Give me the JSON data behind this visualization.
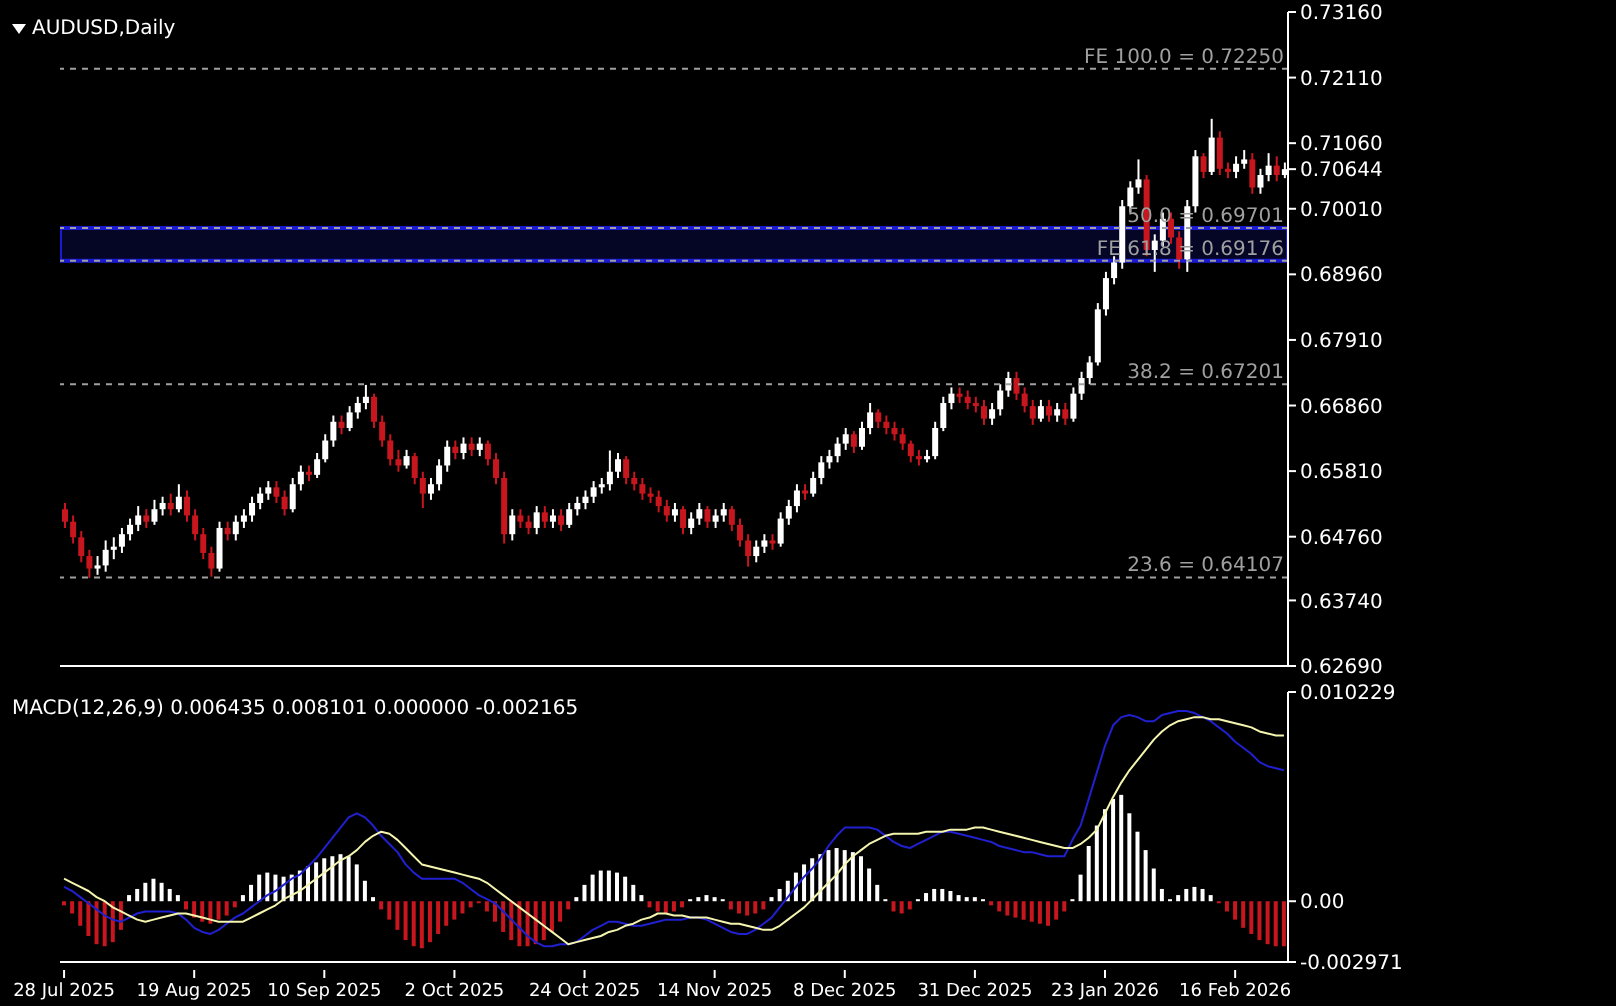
{
  "chart_data": [
    {
      "type": "candlestick",
      "title": "AUDUSD,Daily",
      "tick_labels": "y",
      "categories": [
        null,
        null,
        null,
        null,
        null,
        null,
        null,
        null,
        null,
        null,
        null,
        null,
        null,
        null,
        null,
        null,
        null,
        null,
        null,
        null,
        null,
        null,
        null,
        null,
        null,
        null,
        null,
        null,
        null,
        null,
        null,
        null,
        null,
        null,
        null,
        null,
        null,
        null,
        null,
        null,
        null,
        null,
        null,
        null,
        null,
        null,
        null,
        null,
        null,
        null,
        null,
        null,
        null,
        null,
        null,
        null,
        null,
        null,
        null,
        null,
        null,
        null,
        null,
        null,
        null,
        null,
        null,
        null,
        null,
        null,
        null,
        null,
        null,
        null,
        null,
        null,
        null,
        null,
        null,
        null,
        null,
        null,
        null,
        null,
        null,
        null,
        null,
        null,
        null,
        null,
        null,
        null,
        null,
        null,
        null,
        null,
        null,
        null,
        null,
        null,
        null,
        null,
        null,
        null,
        null,
        null,
        null,
        null,
        null,
        null,
        null,
        null,
        null,
        null,
        null,
        null,
        null,
        null,
        null,
        null,
        null,
        null,
        null,
        null,
        null,
        null,
        null,
        null,
        null,
        null,
        null,
        null,
        null,
        null,
        null,
        null,
        null,
        null,
        null,
        null,
        null,
        null,
        null,
        null,
        null,
        null,
        null,
        null,
        null,
        null,
        null
      ],
      "ohlc": [
        [
          0.652,
          0.653,
          0.649,
          0.65
        ],
        [
          0.65,
          0.651,
          0.6465,
          0.6475
        ],
        [
          0.6475,
          0.6485,
          0.6435,
          0.6445
        ],
        [
          0.6445,
          0.6455,
          0.641,
          0.6425
        ],
        [
          0.6425,
          0.6445,
          0.6415,
          0.643
        ],
        [
          0.643,
          0.647,
          0.642,
          0.6455
        ],
        [
          0.6455,
          0.6475,
          0.644,
          0.646
        ],
        [
          0.646,
          0.649,
          0.645,
          0.648
        ],
        [
          0.648,
          0.6505,
          0.647,
          0.6495
        ],
        [
          0.6495,
          0.6525,
          0.6485,
          0.651
        ],
        [
          0.651,
          0.652,
          0.649,
          0.65
        ],
        [
          0.65,
          0.6535,
          0.6495,
          0.652
        ],
        [
          0.652,
          0.654,
          0.651,
          0.653
        ],
        [
          0.653,
          0.6545,
          0.651,
          0.652
        ],
        [
          0.652,
          0.656,
          0.6515,
          0.654
        ],
        [
          0.654,
          0.655,
          0.65,
          0.651
        ],
        [
          0.651,
          0.652,
          0.647,
          0.648
        ],
        [
          0.648,
          0.649,
          0.644,
          0.645
        ],
        [
          0.645,
          0.646,
          0.6412,
          0.6425
        ],
        [
          0.6425,
          0.65,
          0.642,
          0.649
        ],
        [
          0.649,
          0.65,
          0.647,
          0.648
        ],
        [
          0.648,
          0.651,
          0.647,
          0.65
        ],
        [
          0.65,
          0.652,
          0.649,
          0.651
        ],
        [
          0.651,
          0.654,
          0.65,
          0.653
        ],
        [
          0.653,
          0.6555,
          0.652,
          0.6545
        ],
        [
          0.6545,
          0.6565,
          0.6535,
          0.6555
        ],
        [
          0.6555,
          0.6565,
          0.653,
          0.654
        ],
        [
          0.654,
          0.655,
          0.651,
          0.652
        ],
        [
          0.652,
          0.657,
          0.6515,
          0.656
        ],
        [
          0.656,
          0.659,
          0.655,
          0.658
        ],
        [
          0.658,
          0.659,
          0.6565,
          0.6575
        ],
        [
          0.6575,
          0.661,
          0.657,
          0.66
        ],
        [
          0.66,
          0.664,
          0.6595,
          0.663
        ],
        [
          0.663,
          0.667,
          0.662,
          0.666
        ],
        [
          0.666,
          0.667,
          0.664,
          0.665
        ],
        [
          0.665,
          0.6685,
          0.6645,
          0.6675
        ],
        [
          0.6675,
          0.67,
          0.6665,
          0.669
        ],
        [
          0.669,
          0.6719,
          0.668,
          0.67
        ],
        [
          0.67,
          0.6705,
          0.665,
          0.666
        ],
        [
          0.666,
          0.667,
          0.662,
          0.663
        ],
        [
          0.663,
          0.664,
          0.659,
          0.66
        ],
        [
          0.66,
          0.6615,
          0.658,
          0.659
        ],
        [
          0.659,
          0.6615,
          0.6585,
          0.6605
        ],
        [
          0.6605,
          0.661,
          0.656,
          0.657
        ],
        [
          0.657,
          0.658,
          0.6522,
          0.6545
        ],
        [
          0.6545,
          0.657,
          0.6535,
          0.656
        ],
        [
          0.656,
          0.66,
          0.655,
          0.659
        ],
        [
          0.659,
          0.663,
          0.658,
          0.662
        ],
        [
          0.662,
          0.663,
          0.66,
          0.661
        ],
        [
          0.661,
          0.6635,
          0.66,
          0.6625
        ],
        [
          0.6625,
          0.6635,
          0.6605,
          0.6615
        ],
        [
          0.6615,
          0.6635,
          0.6605,
          0.6625
        ],
        [
          0.6625,
          0.663,
          0.659,
          0.66
        ],
        [
          0.66,
          0.661,
          0.656,
          0.657
        ],
        [
          0.657,
          0.658,
          0.6465,
          0.648
        ],
        [
          0.648,
          0.652,
          0.647,
          0.651
        ],
        [
          0.651,
          0.652,
          0.649,
          0.65
        ],
        [
          0.65,
          0.651,
          0.648,
          0.649
        ],
        [
          0.649,
          0.6525,
          0.648,
          0.6515
        ],
        [
          0.6515,
          0.6525,
          0.649,
          0.65
        ],
        [
          0.65,
          0.652,
          0.649,
          0.651
        ],
        [
          0.651,
          0.652,
          0.6485,
          0.6495
        ],
        [
          0.6495,
          0.653,
          0.649,
          0.652
        ],
        [
          0.652,
          0.654,
          0.651,
          0.653
        ],
        [
          0.653,
          0.655,
          0.652,
          0.654
        ],
        [
          0.654,
          0.6565,
          0.653,
          0.6555
        ],
        [
          0.6555,
          0.657,
          0.6545,
          0.656
        ],
        [
          0.656,
          0.6614,
          0.655,
          0.658
        ],
        [
          0.658,
          0.661,
          0.657,
          0.66
        ],
        [
          0.66,
          0.6605,
          0.656,
          0.657
        ],
        [
          0.657,
          0.658,
          0.655,
          0.656
        ],
        [
          0.656,
          0.657,
          0.6535,
          0.6545
        ],
        [
          0.6545,
          0.6555,
          0.653,
          0.654
        ],
        [
          0.654,
          0.655,
          0.6515,
          0.6525
        ],
        [
          0.6525,
          0.6535,
          0.65,
          0.651
        ],
        [
          0.651,
          0.653,
          0.65,
          0.652
        ],
        [
          0.652,
          0.6525,
          0.648,
          0.649
        ],
        [
          0.649,
          0.6515,
          0.648,
          0.6505
        ],
        [
          0.6505,
          0.653,
          0.6495,
          0.652
        ],
        [
          0.652,
          0.6525,
          0.649,
          0.65
        ],
        [
          0.65,
          0.652,
          0.649,
          0.651
        ],
        [
          0.651,
          0.653,
          0.65,
          0.652
        ],
        [
          0.652,
          0.6525,
          0.6485,
          0.6495
        ],
        [
          0.6495,
          0.6505,
          0.646,
          0.647
        ],
        [
          0.647,
          0.648,
          0.6428,
          0.6445
        ],
        [
          0.6445,
          0.647,
          0.6435,
          0.646
        ],
        [
          0.646,
          0.648,
          0.645,
          0.647
        ],
        [
          0.647,
          0.648,
          0.6455,
          0.6465
        ],
        [
          0.6465,
          0.6515,
          0.646,
          0.6505
        ],
        [
          0.6505,
          0.6535,
          0.6495,
          0.6525
        ],
        [
          0.6525,
          0.656,
          0.6515,
          0.655
        ],
        [
          0.655,
          0.656,
          0.6535,
          0.6545
        ],
        [
          0.6545,
          0.658,
          0.654,
          0.657
        ],
        [
          0.657,
          0.6605,
          0.656,
          0.6595
        ],
        [
          0.6595,
          0.6615,
          0.6585,
          0.6605
        ],
        [
          0.6605,
          0.6635,
          0.6595,
          0.6625
        ],
        [
          0.6625,
          0.665,
          0.6615,
          0.664
        ],
        [
          0.664,
          0.6645,
          0.661,
          0.662
        ],
        [
          0.662,
          0.666,
          0.6615,
          0.665
        ],
        [
          0.665,
          0.669,
          0.664,
          0.6675
        ],
        [
          0.6675,
          0.668,
          0.665,
          0.666
        ],
        [
          0.666,
          0.667,
          0.664,
          0.665
        ],
        [
          0.665,
          0.666,
          0.663,
          0.664
        ],
        [
          0.664,
          0.665,
          0.6615,
          0.6625
        ],
        [
          0.6625,
          0.663,
          0.6595,
          0.6605
        ],
        [
          0.6605,
          0.6615,
          0.659,
          0.66
        ],
        [
          0.66,
          0.6615,
          0.6595,
          0.6605
        ],
        [
          0.6605,
          0.666,
          0.66,
          0.665
        ],
        [
          0.665,
          0.67,
          0.6645,
          0.669
        ],
        [
          0.669,
          0.6715,
          0.668,
          0.6705
        ],
        [
          0.6705,
          0.6715,
          0.669,
          0.67
        ],
        [
          0.67,
          0.671,
          0.668,
          0.669
        ],
        [
          0.669,
          0.67,
          0.6675,
          0.6685
        ],
        [
          0.6685,
          0.6695,
          0.6655,
          0.6665
        ],
        [
          0.6665,
          0.669,
          0.6655,
          0.668
        ],
        [
          0.668,
          0.672,
          0.667,
          0.671
        ],
        [
          0.671,
          0.674,
          0.67,
          0.673
        ],
        [
          0.673,
          0.674,
          0.6695,
          0.6705
        ],
        [
          0.6705,
          0.6715,
          0.6675,
          0.6685
        ],
        [
          0.6685,
          0.6695,
          0.6655,
          0.6665
        ],
        [
          0.6665,
          0.6695,
          0.666,
          0.6685
        ],
        [
          0.6685,
          0.6695,
          0.666,
          0.667
        ],
        [
          0.667,
          0.669,
          0.666,
          0.668
        ],
        [
          0.668,
          0.669,
          0.6655,
          0.6665
        ],
        [
          0.6665,
          0.6715,
          0.666,
          0.6705
        ],
        [
          0.6705,
          0.674,
          0.6695,
          0.673
        ],
        [
          0.673,
          0.6765,
          0.672,
          0.6755
        ],
        [
          0.6755,
          0.685,
          0.675,
          0.684
        ],
        [
          0.684,
          0.69,
          0.683,
          0.689
        ],
        [
          0.689,
          0.6925,
          0.688,
          0.6915
        ],
        [
          0.6915,
          0.7015,
          0.6905,
          0.7005
        ],
        [
          0.7005,
          0.7045,
          0.6995,
          0.7035
        ],
        [
          0.7035,
          0.708,
          0.7025,
          0.7048
        ],
        [
          0.7048,
          0.7055,
          0.6925,
          0.6935
        ],
        [
          0.6935,
          0.696,
          0.69,
          0.695
        ],
        [
          0.695,
          0.6995,
          0.694,
          0.6985
        ],
        [
          0.6985,
          0.6995,
          0.6945,
          0.6955
        ],
        [
          0.6955,
          0.6965,
          0.6905,
          0.692
        ],
        [
          0.692,
          0.7015,
          0.69,
          0.7005
        ],
        [
          0.7005,
          0.7095,
          0.6995,
          0.7085
        ],
        [
          0.7085,
          0.709,
          0.705,
          0.706
        ],
        [
          0.706,
          0.7145,
          0.7055,
          0.7115
        ],
        [
          0.7115,
          0.7125,
          0.7055,
          0.7065
        ],
        [
          0.7065,
          0.7075,
          0.705,
          0.706
        ],
        [
          0.706,
          0.7085,
          0.705,
          0.7073
        ],
        [
          0.7073,
          0.7095,
          0.7065,
          0.708
        ],
        [
          0.708,
          0.709,
          0.7025,
          0.7035
        ],
        [
          0.7035,
          0.7065,
          0.7025,
          0.7055
        ],
        [
          0.7055,
          0.709,
          0.7045,
          0.707
        ],
        [
          0.707,
          0.7085,
          0.7045,
          0.7055
        ],
        [
          0.7055,
          0.7075,
          0.705,
          0.70644
        ]
      ],
      "colors": [
        "#c8161e",
        "#c8161e",
        "#c8161e",
        "#c8161e",
        "#ffffff",
        "#ffffff",
        "#ffffff",
        "#ffffff",
        "#ffffff",
        "#ffffff",
        "#c8161e",
        "#ffffff",
        "#ffffff",
        "#c8161e",
        "#ffffff",
        "#c8161e",
        "#c8161e",
        "#c8161e",
        "#c8161e",
        "#ffffff",
        "#c8161e",
        "#ffffff",
        "#ffffff",
        "#ffffff",
        "#ffffff",
        "#ffffff",
        "#c8161e",
        "#c8161e",
        "#ffffff",
        "#ffffff",
        "#c8161e",
        "#ffffff",
        "#ffffff",
        "#ffffff",
        "#c8161e",
        "#ffffff",
        "#ffffff",
        "#ffffff",
        "#c8161e",
        "#c8161e",
        "#c8161e",
        "#c8161e",
        "#ffffff",
        "#c8161e",
        "#c8161e",
        "#ffffff",
        "#ffffff",
        "#ffffff",
        "#c8161e",
        "#ffffff",
        "#c8161e",
        "#ffffff",
        "#c8161e",
        "#c8161e",
        "#c8161e",
        "#ffffff",
        "#c8161e",
        "#c8161e",
        "#ffffff",
        "#c8161e",
        "#ffffff",
        "#c8161e",
        "#ffffff",
        "#ffffff",
        "#ffffff",
        "#ffffff",
        "#ffffff",
        "#ffffff",
        "#ffffff",
        "#c8161e",
        "#c8161e",
        "#c8161e",
        "#c8161e",
        "#c8161e",
        "#c8161e",
        "#ffffff",
        "#c8161e",
        "#ffffff",
        "#ffffff",
        "#c8161e",
        "#ffffff",
        "#ffffff",
        "#c8161e",
        "#c8161e",
        "#c8161e",
        "#ffffff",
        "#ffffff",
        "#c8161e",
        "#ffffff",
        "#ffffff",
        "#ffffff",
        "#c8161e",
        "#ffffff",
        "#ffffff",
        "#ffffff",
        "#ffffff",
        "#ffffff",
        "#c8161e",
        "#ffffff",
        "#ffffff",
        "#c8161e",
        "#c8161e",
        "#c8161e",
        "#c8161e",
        "#c8161e",
        "#c8161e",
        "#ffffff",
        "#ffffff",
        "#ffffff",
        "#ffffff",
        "#c8161e",
        "#c8161e",
        "#c8161e",
        "#c8161e",
        "#ffffff",
        "#ffffff",
        "#ffffff",
        "#c8161e",
        "#c8161e",
        "#c8161e",
        "#ffffff",
        "#c8161e",
        "#ffffff",
        "#c8161e",
        "#ffffff",
        "#ffffff",
        "#ffffff",
        "#ffffff",
        "#ffffff",
        "#ffffff",
        "#ffffff",
        "#ffffff",
        "#ffffff",
        "#c8161e",
        "#ffffff",
        "#ffffff",
        "#c8161e",
        "#c8161e",
        "#ffffff",
        "#ffffff",
        "#c8161e",
        "#ffffff",
        "#c8161e",
        "#c8161e",
        "#ffffff",
        "#ffffff",
        "#c8161e",
        "#ffffff",
        "#ffffff",
        "#c8161e",
        "#ffffff"
      ],
      "ylim": [
        0.6269,
        0.7316
      ],
      "yticks": [
        {
          "value": 0.7316,
          "label": "0.73160"
        },
        {
          "value": 0.7211,
          "label": "0.72110"
        },
        {
          "value": 0.7106,
          "label": "0.71060"
        },
        {
          "value": 0.70644,
          "label": "0.70644"
        },
        {
          "value": 0.7001,
          "label": "0.70010"
        },
        {
          "value": 0.6896,
          "label": "0.68960"
        },
        {
          "value": 0.6791,
          "label": "0.67910"
        },
        {
          "value": 0.6686,
          "label": "0.66860"
        },
        {
          "value": 0.6581,
          "label": "0.65810"
        },
        {
          "value": 0.6476,
          "label": "0.64760"
        },
        {
          "value": 0.6374,
          "label": "0.63740"
        },
        {
          "value": 0.6269,
          "label": "0.62690"
        }
      ],
      "ref_lines": [
        {
          "axis": "y",
          "value": 0.7225,
          "label": "FE 100.0 = 0.72250",
          "color": "#a0a0a0",
          "line_style": "dashed"
        },
        {
          "axis": "y",
          "value": 0.69701,
          "label": "50.0 = 0.69701",
          "color": "#a0a0a0",
          "line_style": "dashed"
        },
        {
          "axis": "y",
          "value": 0.69176,
          "label": "FE 61.8 = 0.69176",
          "color": "#a0a0a0",
          "line_style": "dashed"
        },
        {
          "axis": "y",
          "value": 0.67201,
          "label": "38.2 = 0.67201",
          "color": "#a0a0a0",
          "line_style": "dashed"
        },
        {
          "axis": "y",
          "value": 0.64107,
          "label": "23.6 = 0.64107",
          "color": "#a0a0a0",
          "line_style": "dashed"
        }
      ],
      "bands": [
        {
          "axis": "y",
          "from": 0.69176,
          "to": 0.69701,
          "color": "#1a1ad0"
        }
      ]
    },
    {
      "type": "bar",
      "title": "MACD(12,26,9) 0.006435 0.008101 0.000000 -0.002165",
      "categories": [
        "28 Jul 2025",
        null,
        null,
        null,
        null,
        null,
        null,
        null,
        null,
        null,
        null,
        null,
        null,
        null,
        null,
        null,
        "19 Aug 2025",
        null,
        null,
        null,
        null,
        null,
        null,
        null,
        null,
        null,
        null,
        null,
        null,
        null,
        null,
        null,
        "10 Sep 2025",
        null,
        null,
        null,
        null,
        null,
        null,
        null,
        null,
        null,
        null,
        null,
        null,
        null,
        null,
        null,
        "2 Oct 2025",
        null,
        null,
        null,
        null,
        null,
        null,
        null,
        null,
        null,
        null,
        null,
        null,
        null,
        null,
        null,
        "24 Oct 2025",
        null,
        null,
        null,
        null,
        null,
        null,
        null,
        null,
        null,
        null,
        null,
        null,
        null,
        null,
        null,
        "14 Nov 2025",
        null,
        null,
        null,
        null,
        null,
        null,
        null,
        null,
        null,
        null,
        null,
        null,
        null,
        null,
        null,
        "8 Dec 2025",
        null,
        null,
        null,
        null,
        null,
        null,
        null,
        null,
        null,
        null,
        null,
        null,
        null,
        null,
        null,
        "31 Dec 2025",
        null,
        null,
        null,
        null,
        null,
        null,
        null,
        null,
        null,
        null,
        null,
        null,
        null,
        null,
        null,
        "23 Jan 2026",
        null,
        null,
        null,
        null,
        null,
        null,
        null,
        null,
        null,
        null,
        null,
        null,
        null,
        null,
        null,
        "16 Feb 2026",
        null,
        null,
        null,
        null,
        null,
        null
      ],
      "ylim": [
        -0.002971,
        0.010229
      ],
      "yticks": [
        {
          "value": 0.010229,
          "label": "0.010229"
        },
        {
          "value": 0,
          "label": "0.00"
        },
        {
          "value": -0.002971,
          "label": "-0.002971"
        }
      ],
      "series": [
        {
          "type": "bar",
          "values": [
            -0.0002,
            -0.0006,
            -0.0012,
            -0.0017,
            -0.0021,
            -0.0022,
            -0.002,
            -0.0014,
            0.0003,
            0.0006,
            0.0009,
            0.0011,
            0.0009,
            0.0006,
            0.0003,
            -0.0004,
            -0.0008,
            -0.001,
            -0.0011,
            -0.0009,
            -0.0007,
            -0.0003,
            0.0003,
            0.0008,
            0.0013,
            0.0014,
            0.0013,
            0.0012,
            0.0013,
            0.0015,
            0.0017,
            0.0019,
            0.0021,
            0.0022,
            0.0023,
            0.0022,
            0.0018,
            0.001,
            0.0002,
            -0.0004,
            -0.0009,
            -0.0014,
            -0.0019,
            -0.0022,
            -0.0023,
            -0.002,
            -0.0016,
            -0.0012,
            -0.0009,
            -0.0006,
            -0.0003,
            -0.0001,
            -0.0005,
            -0.001,
            -0.0015,
            -0.0019,
            -0.0022,
            -0.0022,
            -0.0021,
            -0.0019,
            -0.0015,
            -0.001,
            -0.0004,
            0.0002,
            0.0008,
            0.0013,
            0.0015,
            0.0015,
            0.0014,
            0.0012,
            0.0008,
            0.0003,
            -0.0003,
            -0.0005,
            -0.0006,
            -0.0005,
            -0.0003,
            0.0001,
            0.0002,
            0.0003,
            0.0002,
            0.0001,
            -0.0004,
            -0.0006,
            -0.0007,
            -0.0006,
            -0.0004,
            0.0002,
            0.0006,
            0.001,
            0.0014,
            0.0018,
            0.0021,
            0.0023,
            0.0025,
            0.0026,
            0.0025,
            0.0024,
            0.0022,
            0.0016,
            0.0008,
            0.0001,
            -0.0005,
            -0.0006,
            -0.0004,
            0.0001,
            0.0004,
            0.0006,
            0.0006,
            0.0005,
            0.0003,
            0.0002,
            0.0002,
            0.0001,
            -0.0002,
            -0.0005,
            -0.0007,
            -0.0008,
            -0.0009,
            -0.001,
            -0.0011,
            -0.0012,
            -0.0009,
            -0.0005,
            0.0001,
            0.0013,
            0.0027,
            0.0037,
            0.0045,
            0.005,
            0.0052,
            0.0043,
            0.0034,
            0.0025,
            0.0016,
            0.0006,
            0.0001,
            0.0003,
            0.0006,
            0.0007,
            0.0006,
            0.0003,
            -0.0001,
            -0.0005,
            -0.0009,
            -0.0013,
            -0.0016,
            -0.0019,
            -0.0021,
            -0.0022,
            -0.0022
          ],
          "colors": [
            "#c8161e",
            "#c8161e",
            "#c8161e",
            "#c8161e",
            "#c8161e",
            "#c8161e",
            "#c8161e",
            "#c8161e",
            "#ffffff",
            "#ffffff",
            "#ffffff",
            "#ffffff",
            "#ffffff",
            "#ffffff",
            "#ffffff",
            "#c8161e",
            "#c8161e",
            "#c8161e",
            "#c8161e",
            "#c8161e",
            "#c8161e",
            "#c8161e",
            "#ffffff",
            "#ffffff",
            "#ffffff",
            "#ffffff",
            "#ffffff",
            "#ffffff",
            "#ffffff",
            "#ffffff",
            "#ffffff",
            "#ffffff",
            "#ffffff",
            "#ffffff",
            "#ffffff",
            "#ffffff",
            "#ffffff",
            "#ffffff",
            "#ffffff",
            "#c8161e",
            "#c8161e",
            "#c8161e",
            "#c8161e",
            "#c8161e",
            "#c8161e",
            "#c8161e",
            "#c8161e",
            "#c8161e",
            "#c8161e",
            "#c8161e",
            "#c8161e",
            "#c8161e",
            "#c8161e",
            "#c8161e",
            "#c8161e",
            "#c8161e",
            "#c8161e",
            "#c8161e",
            "#c8161e",
            "#c8161e",
            "#c8161e",
            "#c8161e",
            "#c8161e",
            "#ffffff",
            "#ffffff",
            "#ffffff",
            "#ffffff",
            "#ffffff",
            "#ffffff",
            "#ffffff",
            "#ffffff",
            "#ffffff",
            "#c8161e",
            "#c8161e",
            "#c8161e",
            "#c8161e",
            "#c8161e",
            "#ffffff",
            "#ffffff",
            "#ffffff",
            "#ffffff",
            "#ffffff",
            "#c8161e",
            "#c8161e",
            "#c8161e",
            "#c8161e",
            "#c8161e",
            "#ffffff",
            "#ffffff",
            "#ffffff",
            "#ffffff",
            "#ffffff",
            "#ffffff",
            "#ffffff",
            "#ffffff",
            "#ffffff",
            "#ffffff",
            "#ffffff",
            "#ffffff",
            "#ffffff",
            "#ffffff",
            "#ffffff",
            "#c8161e",
            "#c8161e",
            "#c8161e",
            "#ffffff",
            "#ffffff",
            "#ffffff",
            "#ffffff",
            "#ffffff",
            "#ffffff",
            "#ffffff",
            "#ffffff",
            "#ffffff",
            "#c8161e",
            "#c8161e",
            "#c8161e",
            "#c8161e",
            "#c8161e",
            "#c8161e",
            "#c8161e",
            "#c8161e",
            "#c8161e",
            "#c8161e",
            "#ffffff",
            "#ffffff",
            "#ffffff",
            "#ffffff",
            "#ffffff",
            "#ffffff",
            "#ffffff",
            "#ffffff",
            "#ffffff",
            "#ffffff",
            "#ffffff",
            "#ffffff",
            "#ffffff",
            "#ffffff",
            "#ffffff",
            "#ffffff",
            "#ffffff",
            "#ffffff",
            "#c8161e",
            "#c8161e",
            "#c8161e",
            "#c8161e",
            "#c8161e",
            "#c8161e",
            "#c8161e",
            "#c8161e",
            "#c8161e"
          ]
        },
        {
          "type": "line",
          "color": "#2020d0",
          "values": [
            0.0007,
            0.0005,
            0.0002,
            -0.0001,
            -0.0004,
            -0.0007,
            -0.0009,
            -0.001,
            -0.0008,
            -0.0006,
            -0.0005,
            -0.0005,
            -0.0005,
            -0.0005,
            -0.0006,
            -0.0009,
            -0.0013,
            -0.0015,
            -0.0016,
            -0.0014,
            -0.0011,
            -0.0008,
            -0.0006,
            -0.0003,
            0.0,
            0.0003,
            0.0005,
            0.0008,
            0.0011,
            0.0013,
            0.0017,
            0.0021,
            0.0026,
            0.0031,
            0.0036,
            0.0041,
            0.0043,
            0.0041,
            0.0037,
            0.0032,
            0.0028,
            0.0024,
            0.0018,
            0.0014,
            0.0011,
            0.0011,
            0.0011,
            0.0011,
            0.0011,
            0.0009,
            0.0006,
            0.0003,
            0.0001,
            -0.0001,
            -0.0005,
            -0.0009,
            -0.0013,
            -0.0017,
            -0.002,
            -0.0022,
            -0.0022,
            -0.0021,
            -0.0021,
            -0.002,
            -0.0017,
            -0.0014,
            -0.0012,
            -0.001,
            -0.001,
            -0.0011,
            -0.0012,
            -0.0012,
            -0.0011,
            -0.001,
            -0.0009,
            -0.0009,
            -0.0009,
            -0.0008,
            -0.0008,
            -0.0009,
            -0.0011,
            -0.0013,
            -0.0015,
            -0.0016,
            -0.0016,
            -0.0014,
            -0.0011,
            -0.0008,
            -0.0003,
            0.0002,
            0.0007,
            0.0012,
            0.0016,
            0.0021,
            0.0027,
            0.0032,
            0.0036,
            0.0036,
            0.0036,
            0.0036,
            0.0035,
            0.0032,
            0.0029,
            0.0027,
            0.0026,
            0.0028,
            0.003,
            0.0032,
            0.0034,
            0.0034,
            0.0033,
            0.0032,
            0.0031,
            0.003,
            0.0029,
            0.0027,
            0.0026,
            0.0025,
            0.0024,
            0.0024,
            0.0023,
            0.0022,
            0.0022,
            0.0022,
            0.003,
            0.0037,
            0.005,
            0.0063,
            0.0076,
            0.0086,
            0.009,
            0.0091,
            0.009,
            0.0088,
            0.0088,
            0.0091,
            0.0092,
            0.0093,
            0.0093,
            0.0092,
            0.009,
            0.0088,
            0.0085,
            0.0082,
            0.0078,
            0.0075,
            0.0072,
            0.0068,
            0.0066,
            0.0065,
            0.0064
          ]
        },
        {
          "type": "line",
          "color": "#f5f5b0",
          "values": [
            0.0011,
            0.0009,
            0.0007,
            0.0005,
            0.0002,
            0.0,
            -0.0003,
            -0.0005,
            -0.0007,
            -0.0009,
            -0.001,
            -0.0009,
            -0.0008,
            -0.0007,
            -0.0006,
            -0.0006,
            -0.0007,
            -0.0008,
            -0.0009,
            -0.001,
            -0.001,
            -0.001,
            -0.001,
            -0.0008,
            -0.0006,
            -0.0004,
            -0.0002,
            0.0001,
            0.0003,
            0.0005,
            0.0008,
            0.0011,
            0.0014,
            0.0017,
            0.002,
            0.0022,
            0.0025,
            0.0029,
            0.0032,
            0.0034,
            0.0033,
            0.003,
            0.0026,
            0.0022,
            0.0018,
            0.0017,
            0.0016,
            0.0015,
            0.0014,
            0.0013,
            0.0012,
            0.0011,
            0.0009,
            0.0006,
            0.0003,
            0.0,
            -0.0003,
            -0.0006,
            -0.0009,
            -0.0012,
            -0.0015,
            -0.0018,
            -0.0021,
            -0.002,
            -0.0019,
            -0.0018,
            -0.0017,
            -0.0015,
            -0.0014,
            -0.0012,
            -0.0011,
            -0.0009,
            -0.0008,
            -0.0006,
            -0.0006,
            -0.0007,
            -0.0007,
            -0.0008,
            -0.0008,
            -0.0008,
            -0.0009,
            -0.001,
            -0.0011,
            -0.0011,
            -0.0012,
            -0.0013,
            -0.0014,
            -0.0014,
            -0.0012,
            -0.0009,
            -0.0006,
            -0.0003,
            0.0001,
            0.0005,
            0.0009,
            0.0013,
            0.0018,
            0.0022,
            0.0025,
            0.0028,
            0.003,
            0.0032,
            0.0033,
            0.0033,
            0.0033,
            0.0033,
            0.0034,
            0.0034,
            0.0034,
            0.0035,
            0.0035,
            0.0035,
            0.0036,
            0.0036,
            0.0035,
            0.0034,
            0.0033,
            0.0032,
            0.0031,
            0.003,
            0.0029,
            0.0028,
            0.0027,
            0.0026,
            0.0026,
            0.0028,
            0.0031,
            0.0035,
            0.0043,
            0.0051,
            0.0058,
            0.0064,
            0.0069,
            0.0074,
            0.0079,
            0.0083,
            0.0086,
            0.0088,
            0.0089,
            0.009,
            0.009,
            0.0089,
            0.0089,
            0.0088,
            0.0087,
            0.0086,
            0.0085,
            0.0083,
            0.0082,
            0.0081,
            0.0081
          ]
        }
      ]
    }
  ]
}
